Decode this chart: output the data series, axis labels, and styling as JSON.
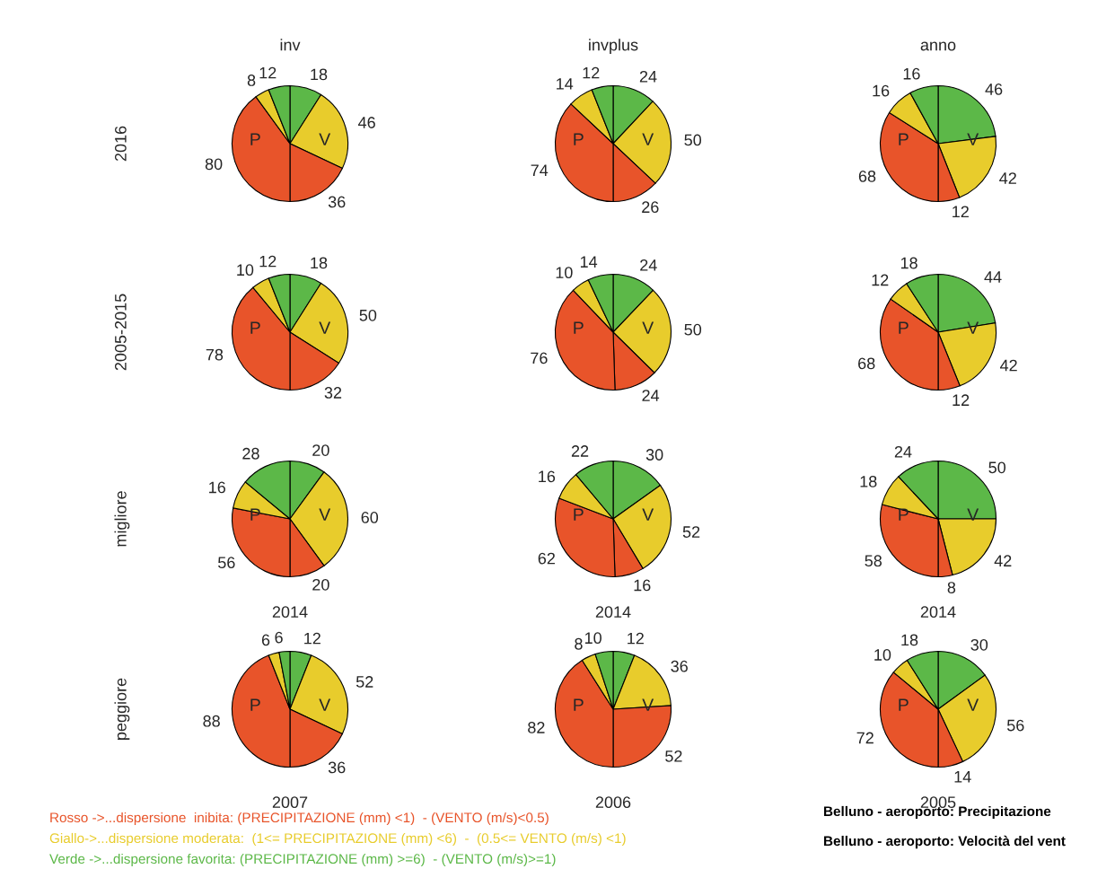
{
  "chart_data": [
    {
      "type": "pie",
      "title": "inv",
      "ylabel": "2016",
      "categories": [
        null,
        null,
        null,
        null,
        null,
        null
      ],
      "values": [
        18,
        46,
        36,
        80,
        8,
        12
      ],
      "colors": [
        "#5cb848",
        "#e8cc2c",
        "#e8542a",
        "#e8542a",
        "#e8cc2c",
        "#5cb848"
      ],
      "data_labels": true,
      "annotations": [
        "P",
        "V"
      ]
    },
    {
      "type": "pie",
      "title": "invplus",
      "categories": [
        null,
        null,
        null,
        null,
        null,
        null
      ],
      "values": [
        24,
        50,
        26,
        74,
        14,
        12
      ],
      "colors": [
        "#5cb848",
        "#e8cc2c",
        "#e8542a",
        "#e8542a",
        "#e8cc2c",
        "#5cb848"
      ],
      "data_labels": true,
      "annotations": [
        "P",
        "V"
      ]
    },
    {
      "type": "pie",
      "title": "anno",
      "categories": [
        null,
        null,
        null,
        null,
        null,
        null
      ],
      "values": [
        46,
        42,
        12,
        68,
        16,
        16
      ],
      "colors": [
        "#5cb848",
        "#e8cc2c",
        "#e8542a",
        "#e8542a",
        "#e8cc2c",
        "#5cb848"
      ],
      "data_labels": true,
      "annotations": [
        "P",
        "V"
      ]
    },
    {
      "type": "pie",
      "ylabel": "2005-2015",
      "categories": [
        null,
        null,
        null,
        null,
        null,
        null
      ],
      "values": [
        18,
        50,
        32,
        78,
        10,
        12
      ],
      "colors": [
        "#5cb848",
        "#e8cc2c",
        "#e8542a",
        "#e8542a",
        "#e8cc2c",
        "#5cb848"
      ],
      "data_labels": true,
      "annotations": [
        "P",
        "V"
      ]
    },
    {
      "type": "pie",
      "categories": [
        null,
        null,
        null,
        null,
        null,
        null
      ],
      "values": [
        24,
        50,
        24,
        76,
        10,
        14
      ],
      "colors": [
        "#5cb848",
        "#e8cc2c",
        "#e8542a",
        "#e8542a",
        "#e8cc2c",
        "#5cb848"
      ],
      "data_labels": true,
      "annotations": [
        "P",
        "V"
      ]
    },
    {
      "type": "pie",
      "categories": [
        null,
        null,
        null,
        null,
        null,
        null
      ],
      "values": [
        44,
        42,
        12,
        68,
        12,
        18
      ],
      "colors": [
        "#5cb848",
        "#e8cc2c",
        "#e8542a",
        "#e8542a",
        "#e8cc2c",
        "#5cb848"
      ],
      "data_labels": true,
      "annotations": [
        "P",
        "V"
      ]
    },
    {
      "type": "pie",
      "ylabel": "migliore",
      "xlabel": "2014",
      "categories": [
        null,
        null,
        null,
        null,
        null,
        null
      ],
      "values": [
        20,
        60,
        20,
        56,
        16,
        28
      ],
      "colors": [
        "#5cb848",
        "#e8cc2c",
        "#e8542a",
        "#e8542a",
        "#e8cc2c",
        "#5cb848"
      ],
      "data_labels": true,
      "annotations": [
        "P",
        "V"
      ]
    },
    {
      "type": "pie",
      "xlabel": "2014",
      "categories": [
        null,
        null,
        null,
        null,
        null,
        null
      ],
      "values": [
        30,
        52,
        16,
        62,
        16,
        22
      ],
      "colors": [
        "#5cb848",
        "#e8cc2c",
        "#e8542a",
        "#e8542a",
        "#e8cc2c",
        "#5cb848"
      ],
      "data_labels": true,
      "annotations": [
        "P",
        "V"
      ]
    },
    {
      "type": "pie",
      "xlabel": "2014",
      "categories": [
        null,
        null,
        null,
        null,
        null,
        null
      ],
      "values": [
        50,
        42,
        8,
        58,
        18,
        24
      ],
      "colors": [
        "#5cb848",
        "#e8cc2c",
        "#e8542a",
        "#e8542a",
        "#e8cc2c",
        "#5cb848"
      ],
      "data_labels": true,
      "annotations": [
        "P",
        "V"
      ]
    },
    {
      "type": "pie",
      "ylabel": "peggiore",
      "xlabel": "2007",
      "categories": [
        null,
        null,
        null,
        null,
        null,
        null
      ],
      "values": [
        12,
        52,
        36,
        88,
        6,
        6
      ],
      "colors": [
        "#5cb848",
        "#e8cc2c",
        "#e8542a",
        "#e8542a",
        "#e8cc2c",
        "#5cb848"
      ],
      "data_labels": true,
      "annotations": [
        "P",
        "V",
        "Rosso ->...dispersione  inibita: (PRECIPITAZIONE (mm) <1)  - (VENTO (m/s)<0.5)",
        "Giallo->...dispersione moderata:  (1<= PRECIPITAZIONE (mm) <6)  -  (0.5<= VENTO (m/s) <1)",
        "Verde ->...dispersione favorita: (PRECIPITAZIONE (mm) >=6)  - (VENTO (m/s)>=1)"
      ]
    },
    {
      "type": "pie",
      "xlabel": "2006",
      "categories": [
        null,
        null,
        null,
        null,
        null,
        null
      ],
      "values": [
        12,
        36,
        52,
        82,
        8,
        10
      ],
      "colors": [
        "#5cb848",
        "#e8cc2c",
        "#e8542a",
        "#e8542a",
        "#e8cc2c",
        "#5cb848"
      ],
      "data_labels": true,
      "annotations": [
        "P",
        "V"
      ]
    },
    {
      "type": "pie",
      "xlabel": "2005",
      "categories": [
        null,
        null,
        null,
        null,
        null,
        null
      ],
      "values": [
        30,
        56,
        14,
        72,
        10,
        18
      ],
      "colors": [
        "#5cb848",
        "#e8cc2c",
        "#e8542a",
        "#e8542a",
        "#e8cc2c",
        "#5cb848"
      ],
      "data_labels": true,
      "annotations": [
        "P",
        "V",
        "Belluno - aeroporto: Precipitazione",
        "Belluno - aeroporto: Velocità del vent"
      ]
    }
  ]
}
